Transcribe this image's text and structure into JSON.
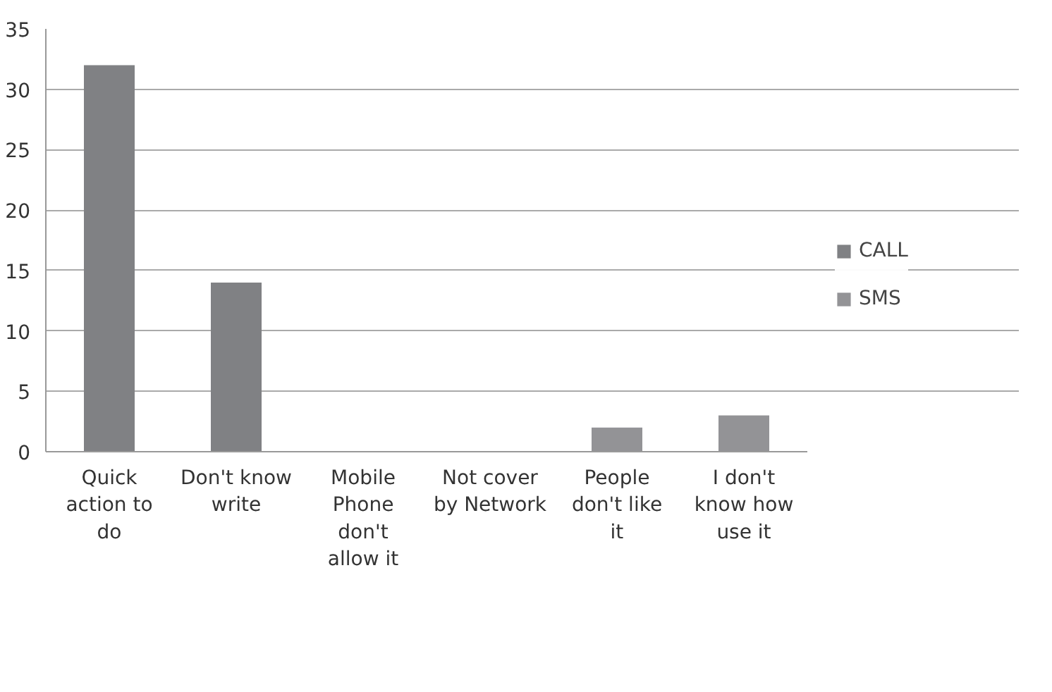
{
  "chart_data": {
    "type": "bar",
    "stacked": true,
    "categories": [
      "Quick action to do",
      "Don't know write",
      "Mobile Phone don't allow it",
      "Not cover by Network",
      "People don't like it",
      "I don't know how use it"
    ],
    "series": [
      {
        "name": "CALL",
        "color": "#808184",
        "values": [
          32,
          14,
          null,
          null,
          null,
          null
        ]
      },
      {
        "name": "SMS",
        "color": "#939396",
        "values": [
          null,
          null,
          null,
          null,
          2,
          3
        ]
      }
    ],
    "ylim": [
      0,
      35
    ],
    "yticks": [
      0,
      5,
      10,
      15,
      20,
      25,
      30,
      35
    ],
    "grid": "y",
    "legend": "right"
  }
}
